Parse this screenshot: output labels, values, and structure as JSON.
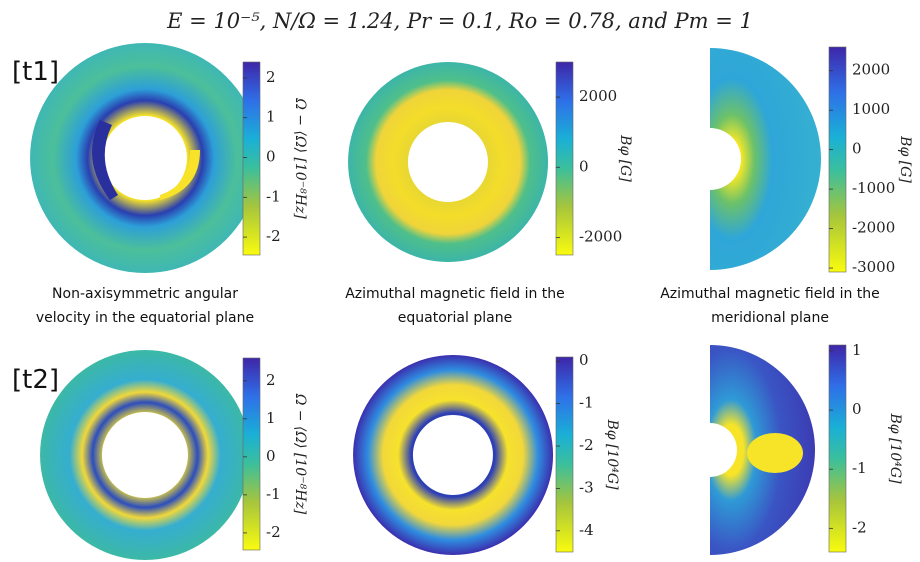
{
  "title": "E = 10⁻⁵, N/Ω = 1.24, Pr = 0.1, Ro = 0.78, and Pm = 1",
  "row_labels": [
    "[t1]",
    "[t2]"
  ],
  "captions": [
    [
      "Non-axisymmetric angular",
      "velocity in the equatorial plane"
    ],
    [
      "Azimuthal magnetic field in the",
      "equatorial plane"
    ],
    [
      "Azimuthal magnetic field in the",
      "meridional plane"
    ]
  ],
  "panels": [
    {
      "colorbar_label": "Ω − ⟨Ω⟩  [10⁻⁸Hz]",
      "lim": [
        -2.45,
        2.4
      ],
      "ticks": [
        2,
        1,
        0,
        -1,
        -2
      ]
    },
    {
      "colorbar_label": "Bφ  [G]",
      "lim": [
        -2500,
        3000
      ],
      "ticks": [
        2000,
        0,
        -2000
      ]
    },
    {
      "colorbar_label": "Bφ  [G]",
      "lim": [
        -3100,
        2600
      ],
      "ticks": [
        2000,
        1000,
        0,
        -1000,
        -2000,
        -3000
      ]
    },
    {
      "colorbar_label": "Ω − ⟨Ω⟩  [10⁻⁸Hz]",
      "lim": [
        -2.45,
        2.6
      ],
      "ticks": [
        2,
        1,
        0,
        -1,
        -2
      ]
    },
    {
      "colorbar_label": "Bφ  [10⁴G]",
      "lim": [
        -4.5,
        0.1
      ],
      "ticks": [
        0,
        -1,
        -2,
        -3,
        -4
      ]
    },
    {
      "colorbar_label": "Bφ  [10⁴G]",
      "lim": [
        -2.4,
        1.1
      ],
      "ticks": [
        1,
        0,
        -1,
        -2
      ]
    }
  ]
}
